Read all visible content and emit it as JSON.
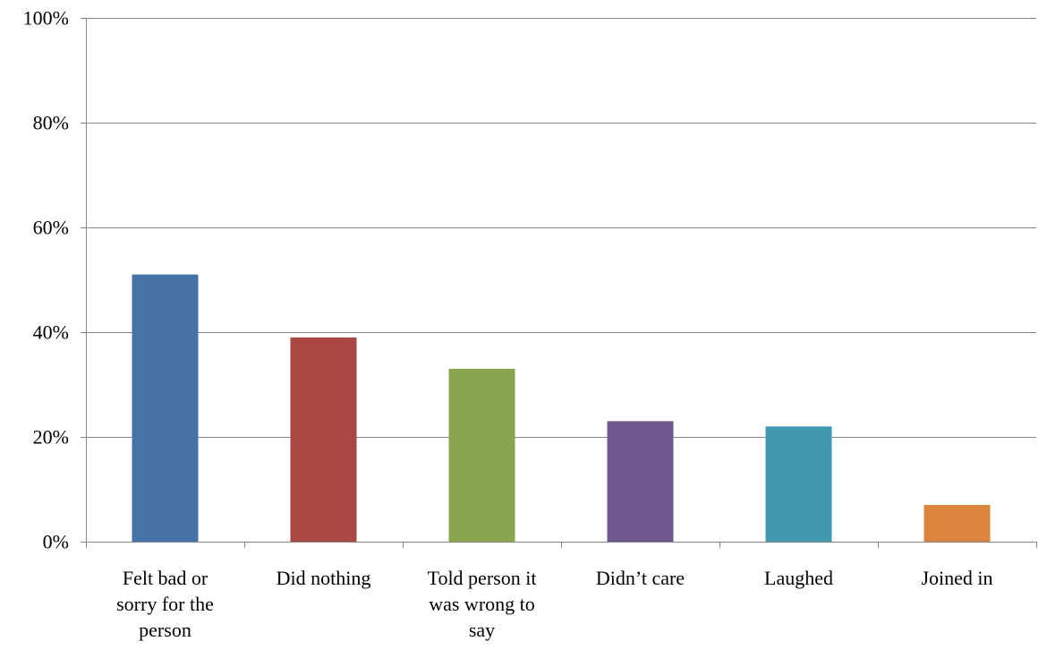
{
  "chart_data": {
    "type": "bar",
    "categories": [
      [
        "Felt bad or",
        "sorry for the",
        "person"
      ],
      [
        "Did nothing"
      ],
      [
        "Told person it",
        "was wrong to",
        "say"
      ],
      [
        "Didn’t care"
      ],
      [
        "Laughed"
      ],
      [
        "Joined in"
      ]
    ],
    "values": [
      51,
      39,
      33,
      23,
      22,
      7
    ],
    "unit": "%",
    "colors": [
      "#4572A7",
      "#AA4643",
      "#89A54E",
      "#71588F",
      "#4198AF",
      "#DB843D"
    ],
    "ylim": [
      0,
      100
    ],
    "yticks": [
      0,
      20,
      40,
      60,
      80,
      100
    ],
    "ytick_labels": [
      "0%",
      "20%",
      "40%",
      "60%",
      "80%",
      "100%"
    ],
    "grid": true,
    "legend": "none"
  }
}
